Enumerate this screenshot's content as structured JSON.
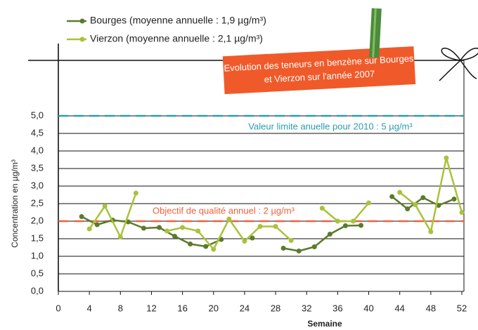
{
  "chart_data": {
    "type": "line",
    "title": [
      "Evolution des teneurs en benzène sur Bourges",
      "et Vierzon sur l'année 2007"
    ],
    "x_label": "Semaine",
    "y_label": "Concentration en µg/m³",
    "series": [
      {
        "name": "Bourges (moyenne annuelle : 1,9 µg/m³)",
        "color": "#5b7a2b",
        "x": [
          3,
          5,
          7,
          9,
          11,
          13,
          15,
          17,
          19,
          21,
          23,
          25,
          27,
          29,
          31,
          33,
          35,
          37,
          39,
          41,
          43,
          45,
          47,
          49,
          51
        ],
        "values": [
          2.13,
          1.9,
          2.03,
          1.98,
          1.8,
          1.82,
          1.57,
          1.35,
          1.28,
          1.48,
          null,
          1.52,
          null,
          1.23,
          1.15,
          1.27,
          1.63,
          1.87,
          1.88,
          null,
          2.7,
          2.35,
          2.67,
          2.45,
          2.63
        ]
      },
      {
        "name": "Vierzon (moyenne annuelle : 2,1 µg/m³)",
        "color": "#a9c23a",
        "x": [
          4,
          6,
          8,
          10,
          12,
          14,
          16,
          18,
          20,
          22,
          24,
          26,
          28,
          30,
          32,
          34,
          36,
          38,
          40,
          42,
          44,
          46,
          48,
          50,
          52
        ],
        "values": [
          1.78,
          2.43,
          1.55,
          2.8,
          null,
          1.72,
          1.82,
          1.72,
          1.2,
          2.06,
          1.43,
          1.85,
          1.85,
          1.45,
          null,
          2.37,
          2.0,
          2.0,
          2.52,
          null,
          2.82,
          2.47,
          1.7,
          3.8,
          2.25
        ]
      }
    ],
    "reference_lines": [
      {
        "value": 5,
        "label": "Valeur limite anuelle pour 2010 : 5 µg/m³",
        "color": "#2a9db0"
      },
      {
        "value": 2,
        "label": "Objectif de qualité annuel : 2 µg/m³",
        "color": "#f0603a"
      }
    ],
    "xlim": [
      0,
      52
    ],
    "xticks": [
      0,
      4,
      8,
      12,
      16,
      20,
      24,
      28,
      32,
      36,
      40,
      44,
      48,
      52
    ],
    "ylim": [
      0,
      5
    ],
    "yticks": [
      {
        "value": 0,
        "label": "0,0"
      },
      {
        "value": 0.5,
        "label": "0,5"
      },
      {
        "value": 1,
        "label": "1,0"
      },
      {
        "value": 1.5,
        "label": "1,5"
      },
      {
        "value": 2,
        "label": "2,0"
      },
      {
        "value": 2.5,
        "label": "2,5"
      },
      {
        "value": 3,
        "label": "3,0"
      },
      {
        "value": 3.5,
        "label": "3,5"
      },
      {
        "value": 4,
        "label": "4,0"
      },
      {
        "value": 4.5,
        "label": "4,5"
      },
      {
        "value": 5,
        "label": "5,0"
      }
    ],
    "grid": true
  }
}
